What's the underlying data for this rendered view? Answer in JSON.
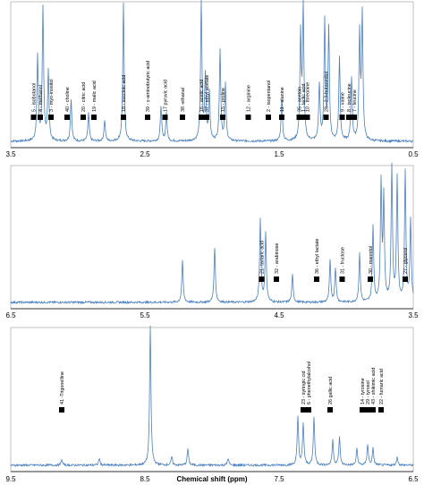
{
  "chart_data": [
    {
      "type": "line",
      "xlabel": "",
      "xlim": [
        3.5,
        0.5
      ],
      "ticks": [
        "3.5",
        "2.5",
        "1.5",
        "0.5"
      ],
      "tick_values": [
        3.5,
        2.5,
        1.5,
        0.5
      ],
      "spectrum_peaks": [
        {
          "x": 3.3,
          "h": 0.6
        },
        {
          "x": 3.26,
          "h": 0.95
        },
        {
          "x": 3.22,
          "h": 0.5
        },
        {
          "x": 3.05,
          "h": 0.3
        },
        {
          "x": 2.92,
          "h": 0.2
        },
        {
          "x": 2.8,
          "h": 0.15
        },
        {
          "x": 2.66,
          "h": 0.98
        },
        {
          "x": 2.38,
          "h": 0.25
        },
        {
          "x": 2.34,
          "h": 0.2
        },
        {
          "x": 2.08,
          "h": 1.0
        },
        {
          "x": 2.05,
          "h": 0.45
        },
        {
          "x": 2.02,
          "h": 0.35
        },
        {
          "x": 1.94,
          "h": 0.65
        },
        {
          "x": 1.9,
          "h": 0.4
        },
        {
          "x": 1.48,
          "h": 0.3
        },
        {
          "x": 1.34,
          "h": 0.75
        },
        {
          "x": 1.32,
          "h": 0.95
        },
        {
          "x": 1.2,
          "h": 0.4
        },
        {
          "x": 1.16,
          "h": 0.85
        },
        {
          "x": 1.13,
          "h": 0.8
        },
        {
          "x": 1.05,
          "h": 0.6
        },
        {
          "x": 0.96,
          "h": 0.45
        },
        {
          "x": 0.9,
          "h": 0.75
        },
        {
          "x": 0.88,
          "h": 0.9
        }
      ],
      "markers": [
        {
          "x": 3.33,
          "label": "5 - isobutanol"
        },
        {
          "x": 3.28,
          "label": "4 - methanol"
        },
        {
          "x": 3.2,
          "label": "3 - myo-inositol"
        },
        {
          "x": 3.08,
          "label": "40 - choline"
        },
        {
          "x": 2.96,
          "label": "20 - citric acid"
        },
        {
          "x": 2.88,
          "label": "19 - malic acid"
        },
        {
          "x": 2.66,
          "label": "18 - succinic acid"
        },
        {
          "x": 2.48,
          "label": "39 - γ-aminobutyric acid"
        },
        {
          "x": 2.35,
          "label": "17 pyruvic acid"
        },
        {
          "x": 2.22,
          "label": "38 -ethanal"
        },
        {
          "x": 2.08,
          "label": "16 - acetic acid"
        },
        {
          "x": 2.04,
          "label": "37 - ethyl acetate"
        },
        {
          "x": 1.92,
          "label": "15 - proline"
        },
        {
          "x": 1.73,
          "label": "12 - arginine"
        },
        {
          "x": 1.58,
          "label": "2 - isopentanol"
        },
        {
          "x": 1.48,
          "label": "11 - alanine"
        },
        {
          "x": 1.35,
          "label": "35 - acetoin"
        },
        {
          "x": 1.32,
          "label": "1 - lactic acid"
        },
        {
          "x": 1.29,
          "label": "10 - threonine"
        },
        {
          "x": 1.15,
          "label": "28 - 2,3-butanediol"
        },
        {
          "x": 1.03,
          "label": "9 - valine"
        },
        {
          "x": 0.98,
          "label": "8 - isoleucine"
        },
        {
          "x": 0.94,
          "label": "7 - leucine"
        }
      ]
    },
    {
      "type": "line",
      "xlabel": "",
      "xlim": [
        6.5,
        3.5
      ],
      "ticks": [
        "6.5",
        "5.5",
        "4.5",
        "3.5"
      ],
      "tick_values": [
        6.5,
        5.5,
        4.5,
        3.5
      ],
      "spectrum_peaks": [
        {
          "x": 5.22,
          "h": 0.3
        },
        {
          "x": 4.98,
          "h": 0.4
        },
        {
          "x": 4.64,
          "h": 0.6
        },
        {
          "x": 4.6,
          "h": 0.5
        },
        {
          "x": 4.4,
          "h": 0.2
        },
        {
          "x": 4.12,
          "h": 0.3
        },
        {
          "x": 4.08,
          "h": 0.25
        },
        {
          "x": 3.9,
          "h": 0.35
        },
        {
          "x": 3.8,
          "h": 0.55
        },
        {
          "x": 3.74,
          "h": 0.85
        },
        {
          "x": 3.72,
          "h": 0.75
        },
        {
          "x": 3.66,
          "h": 1.0
        },
        {
          "x": 3.62,
          "h": 0.9
        },
        {
          "x": 3.56,
          "h": 0.95
        },
        {
          "x": 3.52,
          "h": 0.6
        }
      ],
      "markers": [
        {
          "x": 4.63,
          "label": "21- tartaric acid"
        },
        {
          "x": 4.52,
          "label": "32 - arabinose"
        },
        {
          "x": 4.22,
          "label": "36 - ethyl lactate"
        },
        {
          "x": 4.03,
          "label": "31 - fructose"
        },
        {
          "x": 3.82,
          "label": "30 - mannitol"
        },
        {
          "x": 3.56,
          "label": "27 - glycerol"
        }
      ]
    },
    {
      "type": "line",
      "xlabel": "Chemical shift (ppm)",
      "xlim": [
        9.5,
        6.5
      ],
      "ticks": [
        "9.5",
        "8.5",
        "7.5",
        "6.5"
      ],
      "tick_values": [
        9.5,
        8.5,
        7.5,
        6.5
      ],
      "spectrum_peaks": [
        {
          "x": 9.12,
          "h": 0.04
        },
        {
          "x": 8.84,
          "h": 0.05
        },
        {
          "x": 8.46,
          "h": 1.0
        },
        {
          "x": 8.3,
          "h": 0.06
        },
        {
          "x": 8.18,
          "h": 0.12
        },
        {
          "x": 7.88,
          "h": 0.05
        },
        {
          "x": 7.36,
          "h": 0.35
        },
        {
          "x": 7.32,
          "h": 0.3
        },
        {
          "x": 7.24,
          "h": 0.35
        },
        {
          "x": 7.1,
          "h": 0.18
        },
        {
          "x": 7.05,
          "h": 0.2
        },
        {
          "x": 6.92,
          "h": 0.12
        },
        {
          "x": 6.84,
          "h": 0.15
        },
        {
          "x": 6.8,
          "h": 0.12
        },
        {
          "x": 6.62,
          "h": 0.06
        }
      ],
      "markers": [
        {
          "x": 9.12,
          "label": "41 -Trigonelline"
        },
        {
          "x": 7.32,
          "label": "23 - syringic cid"
        },
        {
          "x": 7.28,
          "label": "6 - phenethylalcohol"
        },
        {
          "x": 7.12,
          "label": "26 gallic acid"
        },
        {
          "x": 6.88,
          "label": "14 - tyrosine"
        },
        {
          "x": 6.84,
          "label": "29 - tyrosol"
        },
        {
          "x": 6.8,
          "label": "43 - shikimic acid"
        },
        {
          "x": 6.74,
          "label": "22 - fumaric acid"
        }
      ]
    }
  ]
}
